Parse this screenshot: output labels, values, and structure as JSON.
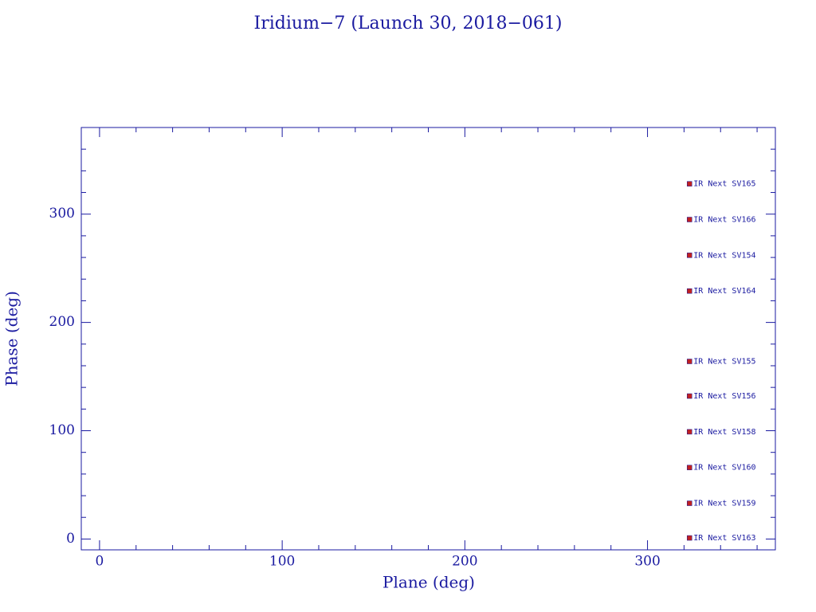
{
  "chart_data": {
    "type": "scatter",
    "title": "Iridium−7 (Launch 30, 2018−061)",
    "xlabel": "Plane (deg)",
    "ylabel": "Phase (deg)",
    "x": [
      323,
      323,
      323,
      323,
      323,
      323,
      323,
      323,
      323,
      323
    ],
    "values": [
      328,
      295,
      262,
      229,
      164,
      132,
      99,
      66,
      33,
      1
    ],
    "labels": [
      "IR Next SV165",
      "IR Next SV166",
      "IR Next SV154",
      "IR Next SV164",
      "IR Next SV155",
      "IR Next SV156",
      "IR Next SV158",
      "IR Next SV160",
      "IR Next SV159",
      "IR Next SV163"
    ],
    "color": "#c02020",
    "xlim": [
      -10,
      370
    ],
    "ylim": [
      -10,
      380
    ],
    "xticks": [
      0,
      100,
      200,
      300
    ],
    "yticks": [
      0,
      100,
      200,
      300
    ],
    "xminorticks": [
      20,
      40,
      60,
      80,
      120,
      140,
      160,
      180,
      220,
      240,
      260,
      280,
      320,
      340,
      360
    ],
    "yminorticks": [
      20,
      40,
      60,
      80,
      120,
      140,
      160,
      180,
      220,
      240,
      260,
      280,
      320,
      340,
      360
    ],
    "grid": false
  }
}
